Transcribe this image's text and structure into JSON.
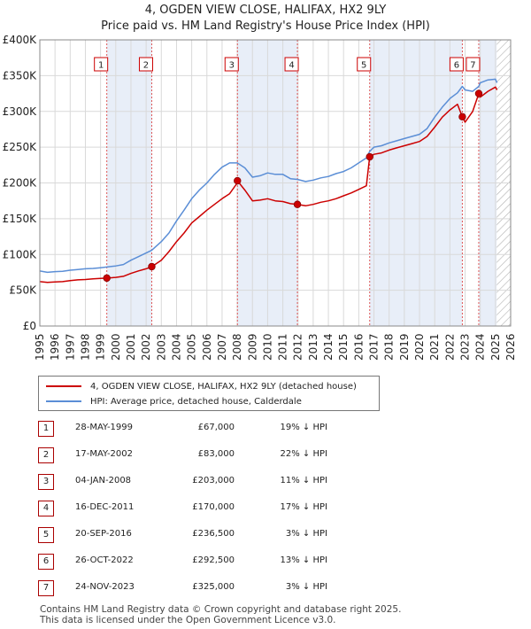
{
  "title_line1": "4, OGDEN VIEW CLOSE, HALIFAX, HX2 9LY",
  "title_line2": "Price paid vs. HM Land Registry's House Price Index (HPI)",
  "colors": {
    "property": "#cc0000",
    "hpi": "#5b8ed6",
    "shade": "#e8eef8",
    "marker_line": "#dd5555",
    "grid": "#d9d9d9",
    "hatch": "#b0b0b0"
  },
  "legend": {
    "property_label": "4, OGDEN VIEW CLOSE, HALIFAX, HX2 9LY (detached house)",
    "hpi_label": "HPI: Average price, detached house, Calderdale"
  },
  "sales": [
    {
      "num": "1",
      "date": "28-MAY-1999",
      "price": "£67,000",
      "hpi": "19% ↓ HPI"
    },
    {
      "num": "2",
      "date": "17-MAY-2002",
      "price": "£83,000",
      "hpi": "22% ↓ HPI"
    },
    {
      "num": "3",
      "date": "04-JAN-2008",
      "price": "£203,000",
      "hpi": "11% ↓ HPI"
    },
    {
      "num": "4",
      "date": "16-DEC-2011",
      "price": "£170,000",
      "hpi": "17% ↓ HPI"
    },
    {
      "num": "5",
      "date": "20-SEP-2016",
      "price": "£236,500",
      "hpi": "3% ↓ HPI"
    },
    {
      "num": "6",
      "date": "26-OCT-2022",
      "price": "£292,500",
      "hpi": "13% ↓ HPI"
    },
    {
      "num": "7",
      "date": "24-NOV-2023",
      "price": "£325,000",
      "hpi": "3% ↓ HPI"
    }
  ],
  "footer_line1": "Contains HM Land Registry data © Crown copyright and database right 2025.",
  "footer_line2": "This data is licensed under the Open Government Licence v3.0.",
  "chart_data": {
    "type": "line",
    "title": "4, OGDEN VIEW CLOSE, HALIFAX, HX2 9LY — Price paid vs. HM Land Registry's House Price Index (HPI)",
    "xlim": [
      1995,
      2026
    ],
    "ylim": [
      0,
      400000
    ],
    "x_ticks": [
      1995,
      1996,
      1997,
      1998,
      1999,
      2000,
      2001,
      2002,
      2003,
      2004,
      2005,
      2006,
      2007,
      2008,
      2009,
      2010,
      2011,
      2012,
      2013,
      2014,
      2015,
      2016,
      2017,
      2018,
      2019,
      2020,
      2021,
      2022,
      2023,
      2024,
      2025,
      2026
    ],
    "y_ticks": [
      {
        "value": 0,
        "label": "£0"
      },
      {
        "value": 50000,
        "label": "£50K"
      },
      {
        "value": 100000,
        "label": "£100K"
      },
      {
        "value": 150000,
        "label": "£150K"
      },
      {
        "value": 200000,
        "label": "£200K"
      },
      {
        "value": 250000,
        "label": "£250K"
      },
      {
        "value": 300000,
        "label": "£300K"
      },
      {
        "value": 350000,
        "label": "£350K"
      },
      {
        "value": 400000,
        "label": "£400K"
      }
    ],
    "shaded_ranges": [
      [
        1999.41,
        2002.37
      ],
      [
        2008.01,
        2011.96
      ],
      [
        2016.72,
        2022.82
      ],
      [
        2023.9,
        2025.08
      ]
    ],
    "hatched_from": 2025.08,
    "sale_points": [
      {
        "num": "1",
        "x": 1999.41,
        "y": 67000
      },
      {
        "num": "2",
        "x": 2002.37,
        "y": 83000
      },
      {
        "num": "3",
        "x": 2008.01,
        "y": 203000
      },
      {
        "num": "4",
        "x": 2011.96,
        "y": 170000
      },
      {
        "num": "5",
        "x": 2016.72,
        "y": 236500
      },
      {
        "num": "6",
        "x": 2022.82,
        "y": 292500
      },
      {
        "num": "7",
        "x": 2023.9,
        "y": 325000
      }
    ],
    "series": [
      {
        "name": "HPI: Average price, detached house, Calderdale",
        "x": [
          1995,
          1995.5,
          1996,
          1996.5,
          1997,
          1997.5,
          1998,
          1998.5,
          1999,
          1999.41,
          2000,
          2000.5,
          2001,
          2001.5,
          2002,
          2002.37,
          2003,
          2003.5,
          2004,
          2004.5,
          2005,
          2005.5,
          2006,
          2006.5,
          2007,
          2007.5,
          2008,
          2008.5,
          2009,
          2009.5,
          2010,
          2010.5,
          2011,
          2011.5,
          2011.96,
          2012.5,
          2013,
          2013.5,
          2014,
          2014.5,
          2015,
          2015.5,
          2016,
          2016.5,
          2016.72,
          2017,
          2017.5,
          2018,
          2018.5,
          2019,
          2019.5,
          2020,
          2020.5,
          2021,
          2021.5,
          2022,
          2022.5,
          2022.82,
          2023,
          2023.5,
          2023.9,
          2024,
          2024.5,
          2025,
          2025.1
        ],
        "values": [
          77000,
          75000,
          76000,
          76500,
          78000,
          79000,
          80000,
          80500,
          81500,
          82500,
          84000,
          86000,
          92000,
          97000,
          102000,
          106000,
          118000,
          130000,
          147000,
          162000,
          178000,
          190000,
          200000,
          212000,
          222000,
          228000,
          228000,
          221000,
          208000,
          210000,
          214000,
          212000,
          212000,
          206000,
          205000,
          202000,
          204000,
          207000,
          209000,
          213000,
          216000,
          221000,
          228000,
          235000,
          244000,
          250000,
          252000,
          256000,
          259000,
          262000,
          265000,
          268000,
          276000,
          292000,
          306000,
          318000,
          326000,
          335000,
          330000,
          328000,
          335000,
          340000,
          344000,
          345000,
          340000
        ]
      },
      {
        "name": "4, OGDEN VIEW CLOSE, HALIFAX, HX2 9LY (detached house)",
        "x": [
          1995,
          1995.5,
          1996,
          1996.5,
          1997,
          1997.5,
          1998,
          1998.5,
          1999,
          1999.41,
          2000,
          2000.5,
          2001,
          2001.5,
          2002,
          2002.37,
          2003,
          2003.5,
          2004,
          2004.5,
          2005,
          2005.5,
          2006,
          2006.5,
          2007,
          2007.5,
          2008,
          2008.01,
          2008.5,
          2009,
          2009.5,
          2010,
          2010.5,
          2011,
          2011.5,
          2011.96,
          2012.5,
          2013,
          2013.5,
          2014,
          2014.5,
          2015,
          2015.5,
          2016,
          2016.5,
          2016.72,
          2017,
          2017.5,
          2018,
          2018.5,
          2019,
          2019.5,
          2020,
          2020.5,
          2021,
          2021.5,
          2022,
          2022.5,
          2022.82,
          2023,
          2023.5,
          2023.9,
          2024,
          2024.5,
          2025,
          2025.1
        ],
        "values": [
          62000,
          61000,
          61500,
          62000,
          63500,
          64500,
          65000,
          66000,
          66500,
          67000,
          68000,
          69500,
          73500,
          77000,
          80000,
          83000,
          92000,
          104000,
          118000,
          130000,
          144000,
          153000,
          162000,
          170000,
          178000,
          185000,
          200000,
          203000,
          190000,
          175000,
          176000,
          178000,
          175000,
          174000,
          171000,
          170000,
          168000,
          170000,
          173000,
          175000,
          178000,
          182000,
          186000,
          191000,
          196000,
          236500,
          240000,
          242000,
          246000,
          249000,
          252000,
          255000,
          258000,
          265000,
          278000,
          292000,
          302000,
          310000,
          292500,
          285000,
          300000,
          325000,
          320000,
          328000,
          334000,
          330000
        ]
      }
    ]
  }
}
